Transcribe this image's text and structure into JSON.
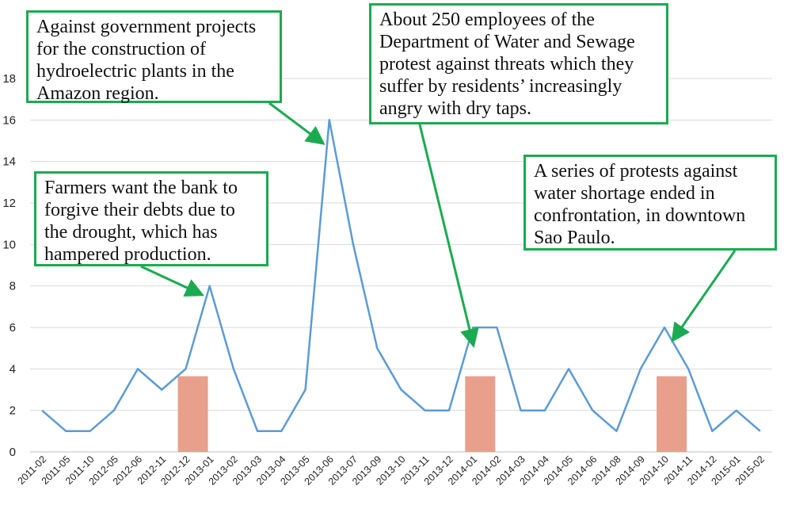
{
  "chart_data": {
    "type": "line",
    "categories": [
      "2011-02",
      "2011-05",
      "2011-10",
      "2012-05",
      "2012-06",
      "2012-11",
      "2012-12",
      "2013-01",
      "2013-02",
      "2013-03",
      "2013-04",
      "2013-05",
      "2013-06",
      "2013-07",
      "2013-09",
      "2013-10",
      "2013-11",
      "2013-12",
      "2014-01",
      "2014-02",
      "2014-03",
      "2014-04",
      "2014-05",
      "2014-06",
      "2014-08",
      "2014-09",
      "2014-10",
      "2014-11",
      "2014-12",
      "2015-01",
      "2015-02"
    ],
    "series": [
      {
        "values": [
          2,
          1,
          1,
          2,
          4,
          3,
          4,
          8,
          4,
          1,
          1,
          3,
          16,
          10,
          5,
          3,
          2,
          2,
          6,
          6,
          2,
          2,
          4,
          2,
          1,
          4,
          6,
          4,
          1,
          2,
          1
        ]
      }
    ],
    "highlight_bars": [
      {
        "category": "2013-01",
        "value": 3.65
      },
      {
        "category": "2014-02",
        "value": 3.65
      },
      {
        "category": "2014-11",
        "value": 3.65
      }
    ],
    "ylim": [
      0,
      18
    ],
    "yticks": [
      0,
      2,
      4,
      6,
      8,
      10,
      12,
      14,
      16,
      18
    ],
    "grid": true,
    "colors": {
      "line": "#5b9bd5",
      "highlight": "#e8a08c",
      "annotation_border": "#1aab50",
      "arrow": "#1aab50",
      "grid": "#d9d9d9"
    },
    "annotations": [
      {
        "text": "Against government projects for the construction of hydroelectric plants in the Amazon region.",
        "points_to": "2013-06"
      },
      {
        "text": "About 250 employees of the Department of Water and Sewage protest against threats which they suffer by residents’ increasingly angry with dry taps.",
        "points_to": "2014-02"
      },
      {
        "text": "Farmers want the bank to forgive their debts due to the drought, which has hampered production.",
        "points_to": "2013-01"
      },
      {
        "text": "A series of protests against water shortage ended in confrontation, in downtown Sao Paulo.",
        "points_to": "2014-10"
      }
    ]
  }
}
